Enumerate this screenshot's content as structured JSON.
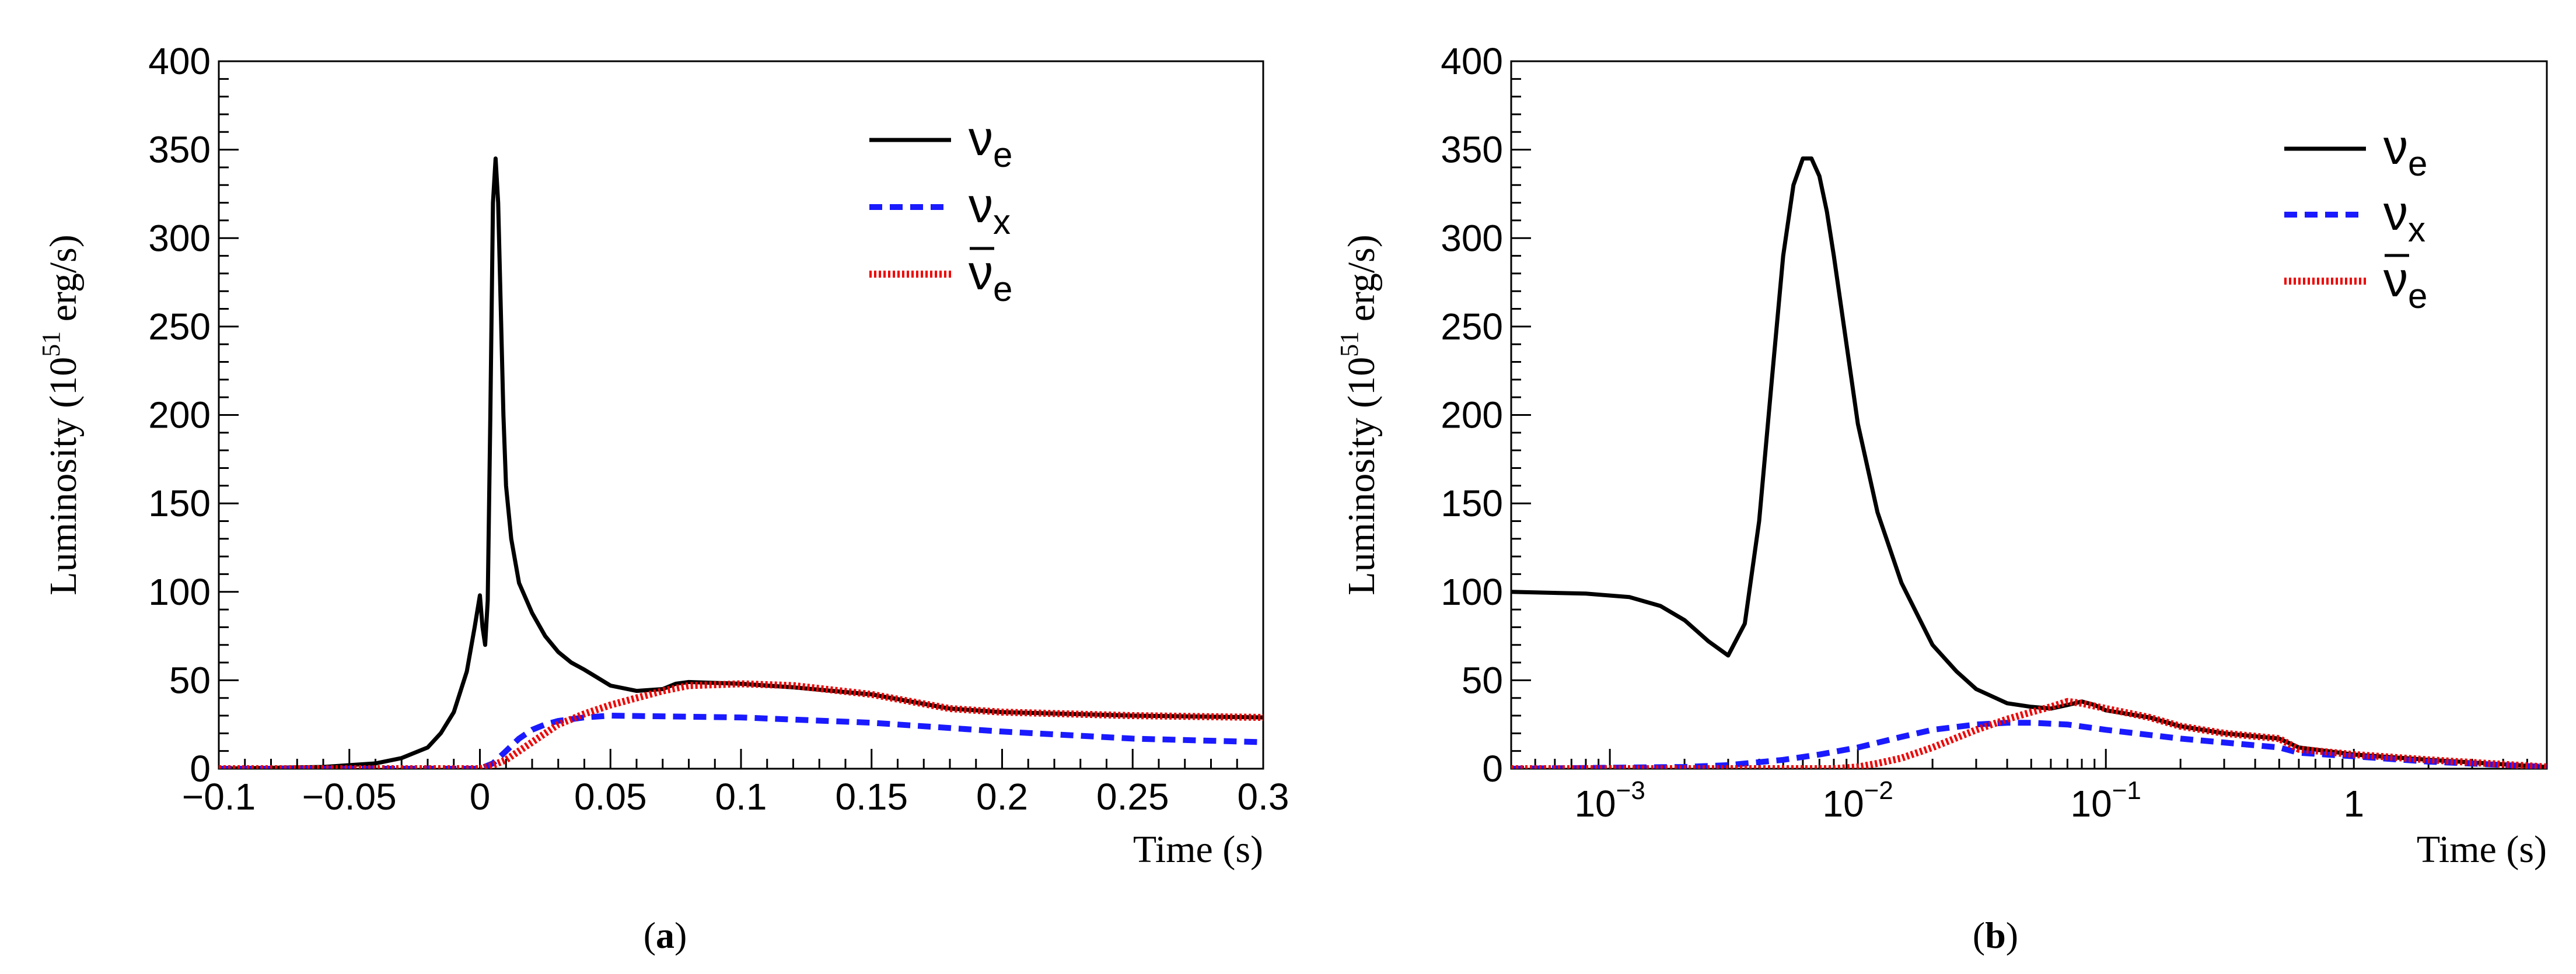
{
  "chart_data": [
    {
      "id": "a",
      "type": "line",
      "panel_label_open": "(",
      "panel_label": "a",
      "panel_label_close": ")",
      "xscale": "linear",
      "xlim": [
        -0.1,
        0.3
      ],
      "ylim": [
        0,
        400
      ],
      "xticks": [
        -0.1,
        -0.05,
        0,
        0.05,
        0.1,
        0.15,
        0.2,
        0.25,
        0.3
      ],
      "xtick_labels": [
        "−0.1",
        "−0.05",
        "0",
        "0.05",
        "0.1",
        "0.15",
        "0.2",
        "0.25",
        "0.3"
      ],
      "yticks": [
        0,
        50,
        100,
        150,
        200,
        250,
        300,
        350,
        400
      ],
      "ytick_labels": [
        "0",
        "50",
        "100",
        "150",
        "200",
        "250",
        "300",
        "350",
        "400"
      ],
      "xlabel": "Time (s)",
      "ylabel_prefix": "Luminosity (10",
      "ylabel_exp": "51",
      "ylabel_suffix": " erg/s)",
      "legend_position": "top-right",
      "series": [
        {
          "name": "νe",
          "base": "ν",
          "sub": "e",
          "bar": false,
          "color": "#000000",
          "style": "solid",
          "x": [
            -0.1,
            -0.06,
            -0.04,
            -0.03,
            -0.02,
            -0.015,
            -0.01,
            -0.005,
            -0.002,
            0,
            0.001,
            0.002,
            0.003,
            0.004,
            0.005,
            0.006,
            0.007,
            0.008,
            0.009,
            0.01,
            0.012,
            0.015,
            0.02,
            0.025,
            0.03,
            0.035,
            0.04,
            0.05,
            0.06,
            0.07,
            0.075,
            0.08,
            0.1,
            0.12,
            0.15,
            0.18,
            0.2,
            0.25,
            0.3
          ],
          "y": [
            0,
            1,
            3,
            6,
            12,
            20,
            32,
            55,
            80,
            98,
            80,
            70,
            95,
            200,
            320,
            345,
            320,
            260,
            200,
            160,
            130,
            105,
            88,
            75,
            66,
            60,
            56,
            47,
            44,
            45,
            48,
            49,
            48,
            46,
            42,
            34,
            32,
            30,
            29
          ]
        },
        {
          "name": "νx",
          "base": "ν",
          "sub": "x",
          "bar": false,
          "color": "#1a1aff",
          "style": "dashed",
          "x": [
            -0.1,
            0,
            0.005,
            0.01,
            0.015,
            0.02,
            0.025,
            0.03,
            0.04,
            0.05,
            0.1,
            0.15,
            0.2,
            0.25,
            0.3
          ],
          "y": [
            0,
            0,
            3,
            10,
            17,
            22,
            25,
            27,
            29,
            30,
            29,
            26,
            21,
            17,
            15
          ]
        },
        {
          "name": "ν̄e",
          "base": "ν",
          "sub": "e",
          "bar": true,
          "color": "#ee0000",
          "style": "dotted",
          "x": [
            -0.1,
            0,
            0.005,
            0.01,
            0.015,
            0.02,
            0.025,
            0.03,
            0.04,
            0.05,
            0.06,
            0.07,
            0.08,
            0.1,
            0.12,
            0.15,
            0.18,
            0.2,
            0.25,
            0.3
          ],
          "y": [
            0,
            0,
            2,
            5,
            10,
            15,
            20,
            25,
            31,
            36,
            40,
            44,
            47,
            48,
            47,
            42,
            34,
            32,
            30,
            29
          ]
        }
      ]
    },
    {
      "id": "b",
      "type": "line",
      "panel_label_open": "(",
      "panel_label": "b",
      "panel_label_close": ")",
      "xscale": "log",
      "xlim": [
        0.0004,
        6
      ],
      "ylim": [
        0,
        400
      ],
      "xticks": [
        0.001,
        0.01,
        0.1,
        1
      ],
      "xtick_labels": [
        {
          "base": "10",
          "exp": "−3"
        },
        {
          "base": "10",
          "exp": "−2"
        },
        {
          "base": "10",
          "exp": "−1"
        },
        {
          "base": "1",
          "exp": ""
        }
      ],
      "yticks": [
        0,
        50,
        100,
        150,
        200,
        250,
        300,
        350,
        400
      ],
      "ytick_labels": [
        "0",
        "50",
        "100",
        "150",
        "200",
        "250",
        "300",
        "350",
        "400"
      ],
      "xlabel": "Time (s)",
      "ylabel_prefix": "Luminosity (10",
      "ylabel_exp": "51",
      "ylabel_suffix": " erg/s)",
      "legend_position": "top-right",
      "series": [
        {
          "name": "νe",
          "base": "ν",
          "sub": "e",
          "bar": false,
          "color": "#000000",
          "style": "solid",
          "x": [
            0.0004,
            0.0008,
            0.0012,
            0.0016,
            0.002,
            0.0025,
            0.003,
            0.0035,
            0.004,
            0.0045,
            0.005,
            0.0055,
            0.006,
            0.0065,
            0.007,
            0.0075,
            0.008,
            0.009,
            0.01,
            0.012,
            0.015,
            0.02,
            0.025,
            0.03,
            0.04,
            0.05,
            0.06,
            0.07,
            0.08,
            0.09,
            0.1,
            0.15,
            0.2,
            0.3,
            0.5,
            0.6,
            1,
            2,
            6
          ],
          "y": [
            100,
            99,
            97,
            92,
            84,
            72,
            64,
            82,
            140,
            220,
            290,
            330,
            345,
            345,
            335,
            315,
            290,
            240,
            195,
            145,
            105,
            70,
            55,
            45,
            37,
            35,
            34,
            36,
            38,
            36,
            33,
            29,
            24,
            20,
            17,
            12,
            8,
            5,
            1
          ]
        },
        {
          "name": "νx",
          "base": "ν",
          "sub": "x",
          "bar": false,
          "color": "#1a1aff",
          "style": "dashed",
          "x": [
            0.0004,
            0.002,
            0.003,
            0.005,
            0.007,
            0.01,
            0.015,
            0.02,
            0.03,
            0.04,
            0.05,
            0.07,
            0.1,
            0.2,
            0.5,
            0.6,
            1,
            2,
            6
          ],
          "y": [
            0,
            1,
            2,
            5,
            8,
            12,
            18,
            22,
            25,
            26,
            26,
            25,
            22,
            17,
            12,
            9,
            7,
            4,
            1
          ]
        },
        {
          "name": "ν̄e",
          "base": "ν",
          "sub": "e",
          "bar": true,
          "color": "#ee0000",
          "style": "dotted",
          "x": [
            0.0004,
            0.005,
            0.008,
            0.01,
            0.012,
            0.015,
            0.02,
            0.03,
            0.04,
            0.05,
            0.06,
            0.07,
            0.08,
            0.1,
            0.15,
            0.2,
            0.3,
            0.5,
            0.6,
            1,
            2,
            6
          ],
          "y": [
            0,
            0,
            0,
            1,
            3,
            6,
            12,
            22,
            28,
            32,
            35,
            38,
            37,
            34,
            29,
            24,
            20,
            17,
            11,
            8,
            5,
            1
          ]
        }
      ]
    }
  ]
}
